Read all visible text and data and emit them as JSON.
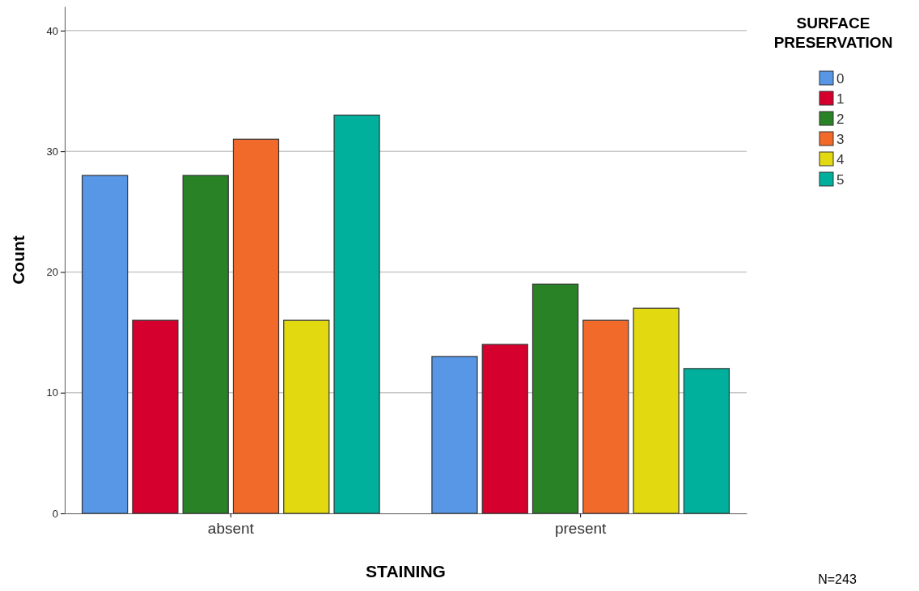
{
  "chart_data": {
    "type": "bar",
    "xlabel": "STAINING",
    "ylabel": "Count",
    "legend_title": "SURFACE\nPRESERVATION",
    "categories": [
      "absent",
      "present"
    ],
    "series": [
      {
        "name": "0",
        "color": "#5797e6",
        "values": [
          28,
          13
        ]
      },
      {
        "name": "1",
        "color": "#d6002f",
        "values": [
          16,
          14
        ]
      },
      {
        "name": "2",
        "color": "#2a8227",
        "values": [
          28,
          19
        ]
      },
      {
        "name": "3",
        "color": "#f26a2a",
        "values": [
          31,
          16
        ]
      },
      {
        "name": "4",
        "color": "#e3d910",
        "values": [
          16,
          17
        ]
      },
      {
        "name": "5",
        "color": "#00b09c",
        "values": [
          33,
          12
        ]
      }
    ],
    "ylim": [
      0,
      42
    ],
    "yticks": [
      0,
      10,
      20,
      30,
      40
    ],
    "grid": "y",
    "legend": "top right",
    "annotations": [
      "N=243"
    ]
  }
}
